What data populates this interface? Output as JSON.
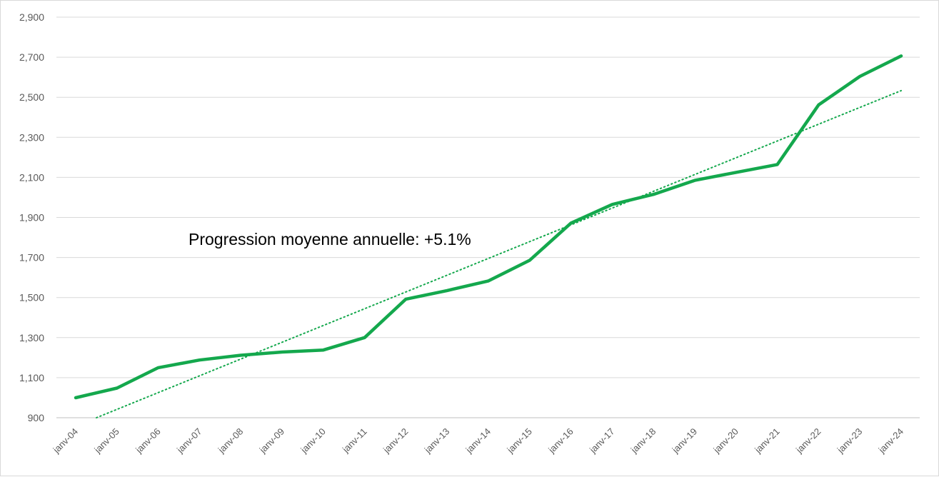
{
  "chart_data": {
    "type": "line",
    "title": "",
    "xlabel": "",
    "ylabel": "",
    "categories": [
      "janv-04",
      "janv-05",
      "janv-06",
      "janv-07",
      "janv-08",
      "janv-09",
      "janv-10",
      "janv-11",
      "janv-12",
      "janv-13",
      "janv-14",
      "janv-15",
      "janv-16",
      "janv-17",
      "janv-18",
      "janv-19",
      "janv-20",
      "janv-21",
      "janv-22",
      "janv-23",
      "janv-24"
    ],
    "series": [
      {
        "values": [
          1000,
          1048,
          1150,
          1188,
          1212,
          1228,
          1238,
          1300,
          1492,
          1535,
          1583,
          1686,
          1872,
          1965,
          2015,
          2085,
          2125,
          2164,
          2462,
          2604,
          2706
        ]
      }
    ],
    "trendline": {
      "type": "linear",
      "start": {
        "x": "janv-04",
        "value": 858
      },
      "end": {
        "x": "janv-24",
        "value": 2533
      }
    },
    "annotation": "Progression moyenne annuelle: +5.1%",
    "ylim": [
      900,
      2900
    ],
    "yticks": [
      900,
      1100,
      1300,
      1500,
      1700,
      1900,
      2100,
      2300,
      2500,
      2700,
      2900
    ],
    "ytick_labels": [
      "900",
      "1,100",
      "1,300",
      "1,500",
      "1,700",
      "1,900",
      "2,100",
      "2,300",
      "2,500",
      "2,700",
      "2,900"
    ],
    "grid": true,
    "legend": "none",
    "colors": {
      "line": "#14A84D",
      "trend": "#14A84D",
      "grid": "#D9D9D9",
      "tick_text": "#595959"
    }
  }
}
